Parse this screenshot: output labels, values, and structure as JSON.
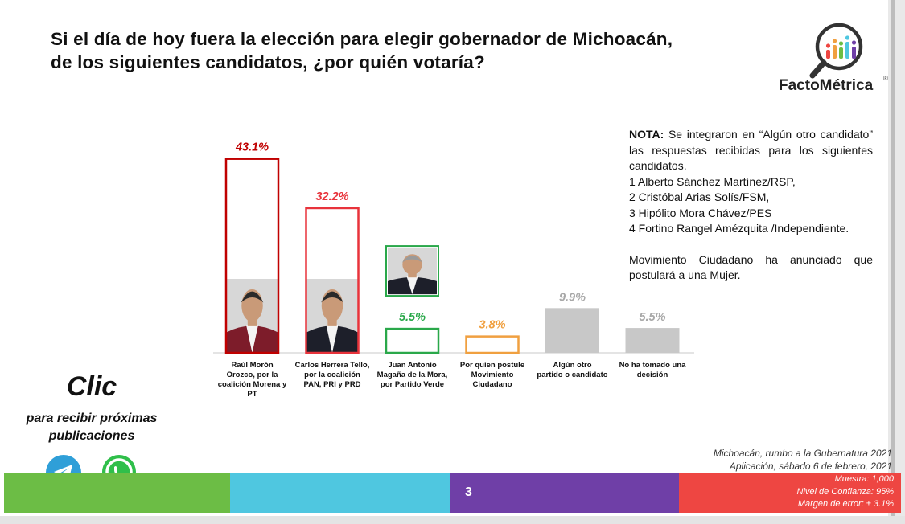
{
  "title_line1": "Si el día de hoy fuera la elección para elegir gobernador de Michoacán,",
  "title_line2": "de los siguientes candidatos, ¿por quién votaría?",
  "logo": {
    "name": "FactoMétrica",
    "registered": "®"
  },
  "chart_data": {
    "type": "bar",
    "categories": [
      [
        "Raúl Morón",
        "Orozco, por la",
        "coalición Morena y",
        "PT"
      ],
      [
        "Carlos Herrera Tello,",
        "por la coalición",
        "PAN, PRI y PRD"
      ],
      [
        "Juan Antonio",
        "Magaña de la Mora,",
        "por Partido Verde"
      ],
      [
        "Por quien postule",
        "Movimiento",
        "Ciudadano"
      ],
      [
        "Algún otro",
        "partido o candidato"
      ],
      [
        "No ha tomado una",
        "decisión"
      ]
    ],
    "values": [
      43.1,
      32.2,
      5.5,
      3.8,
      9.9,
      5.5
    ],
    "value_labels": [
      "43.1%",
      "32.2%",
      "5.5%",
      "3.8%",
      "9.9%",
      "5.5%"
    ],
    "colors": [
      "#c00000",
      "#e8333b",
      "#2aa84a",
      "#f0a040",
      "#c8c8c8",
      "#c8c8c8"
    ],
    "filled": [
      false,
      false,
      false,
      false,
      true,
      true
    ],
    "photo": [
      true,
      true,
      true,
      false,
      false,
      false
    ],
    "ylim": [
      0,
      45
    ],
    "xlabel": "",
    "ylabel": ""
  },
  "note": {
    "label": "NOTA:",
    "intro": "Se integraron en “Algún otro candidato” las respuestas recibidas para los siguientes candidatos.",
    "items": [
      "1 Alberto Sánchez Martínez/RSP,",
      "2 Cristóbal Arias Solís/FSM,",
      "3 Hipólito Mora Chávez/PES",
      "4 Fortino Rangel Amézquita /Independiente."
    ],
    "extra": "Movimiento Ciudadano ha anunciado que postulará a una Mujer."
  },
  "cta": {
    "title": "Clic",
    "subtitle_line1": "para recibir próximas",
    "subtitle_line2": "publicaciones"
  },
  "source": {
    "line1": "Michoacán, rumbo a la Gubernatura 2021",
    "line2": "Aplicación, sábado 6 de febrero, 2021"
  },
  "footer": {
    "page_number": "3",
    "sample": "Muestra:  1,000",
    "confidence": "Nivel de Confianza: 95%",
    "error": "Margen de error: ± 3.1%"
  },
  "palette": {
    "green": "#6cbd45",
    "cyan": "#4fc7e0",
    "purple": "#6f3fa7",
    "red": "#ee4642"
  }
}
